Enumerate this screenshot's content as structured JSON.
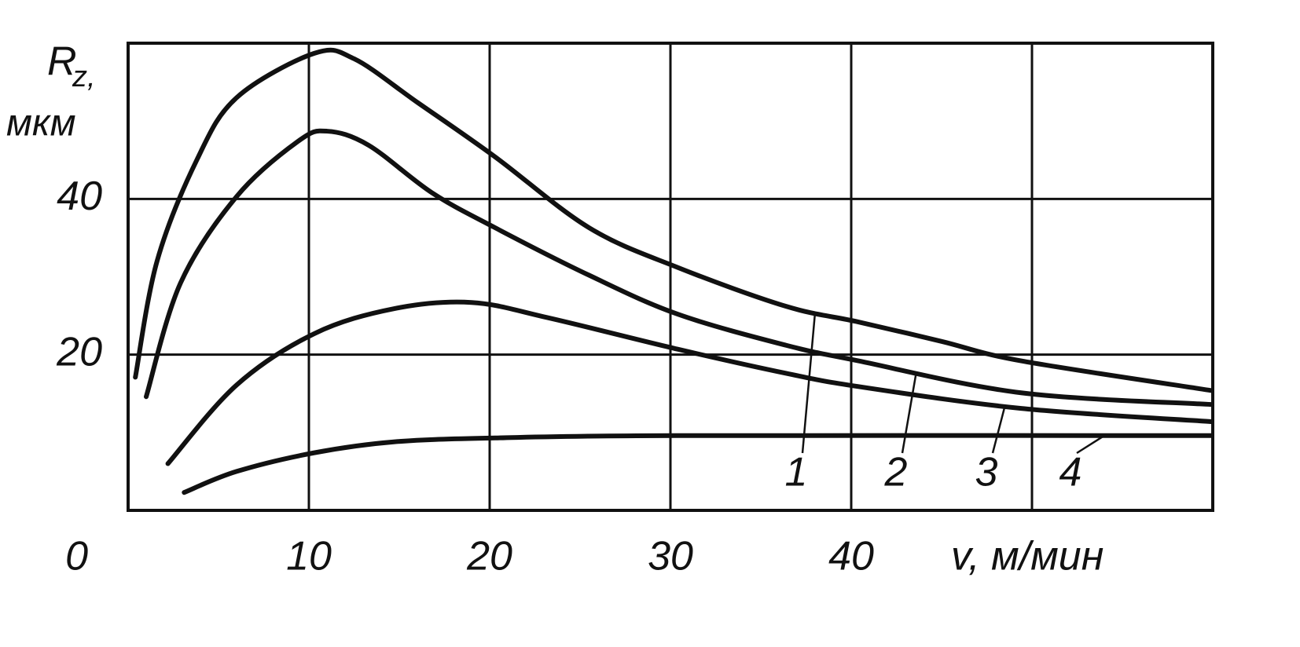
{
  "chart_data": {
    "type": "line",
    "ylabel_symbol": "R",
    "ylabel_subscript": "z,",
    "ylabel_unit": "мкм",
    "xlabel": "v, м/мин",
    "xlim": [
      0,
      60
    ],
    "ylim": [
      0,
      60
    ],
    "xticks": [
      10,
      20,
      30,
      40
    ],
    "yticks": [
      0,
      20,
      40
    ],
    "xgrid": [
      10,
      20,
      30,
      40,
      50
    ],
    "ygrid": [
      20,
      40
    ],
    "grid": true,
    "series": [
      {
        "name": "1",
        "color": "#111111",
        "x": [
          0.4,
          1.6,
          3.8,
          6,
          10.3,
          12.5,
          16,
          20.3,
          25.5,
          30.4,
          36.4,
          40.4,
          45,
          49.4,
          59.9
        ],
        "values": [
          17.1,
          32,
          45,
          53,
          58.7,
          58,
          52.4,
          45.4,
          36.3,
          31.2,
          26.2,
          24.2,
          21.7,
          19.2,
          15.4
        ]
      },
      {
        "name": "2",
        "color": "#111111",
        "x": [
          1,
          2.9,
          6,
          9.4,
          11,
          13.3,
          16.8,
          20.3,
          25.5,
          30.4,
          36.4,
          40.4,
          49.4,
          59.9
        ],
        "values": [
          14.6,
          29.2,
          40.3,
          47.4,
          48.7,
          46.9,
          40.8,
          36.3,
          30.2,
          25.2,
          21.2,
          19.2,
          15.1,
          13.6
        ]
      },
      {
        "name": "3",
        "color": "#111111",
        "x": [
          2.2,
          6,
          10.3,
          14.7,
          19,
          23.3,
          30.4,
          36.4,
          40.4,
          49.4,
          59.9
        ],
        "values": [
          6,
          16.1,
          22.7,
          25.9,
          26.7,
          24.7,
          20.7,
          17.6,
          15.9,
          13.1,
          11.4
        ]
      },
      {
        "name": "4",
        "color": "#111111",
        "x": [
          3.1,
          6,
          10.3,
          14.7,
          20.3,
          30.4,
          59.9
        ],
        "values": [
          2.3,
          5,
          7.4,
          8.8,
          9.3,
          9.6,
          9.6
        ]
      }
    ]
  }
}
